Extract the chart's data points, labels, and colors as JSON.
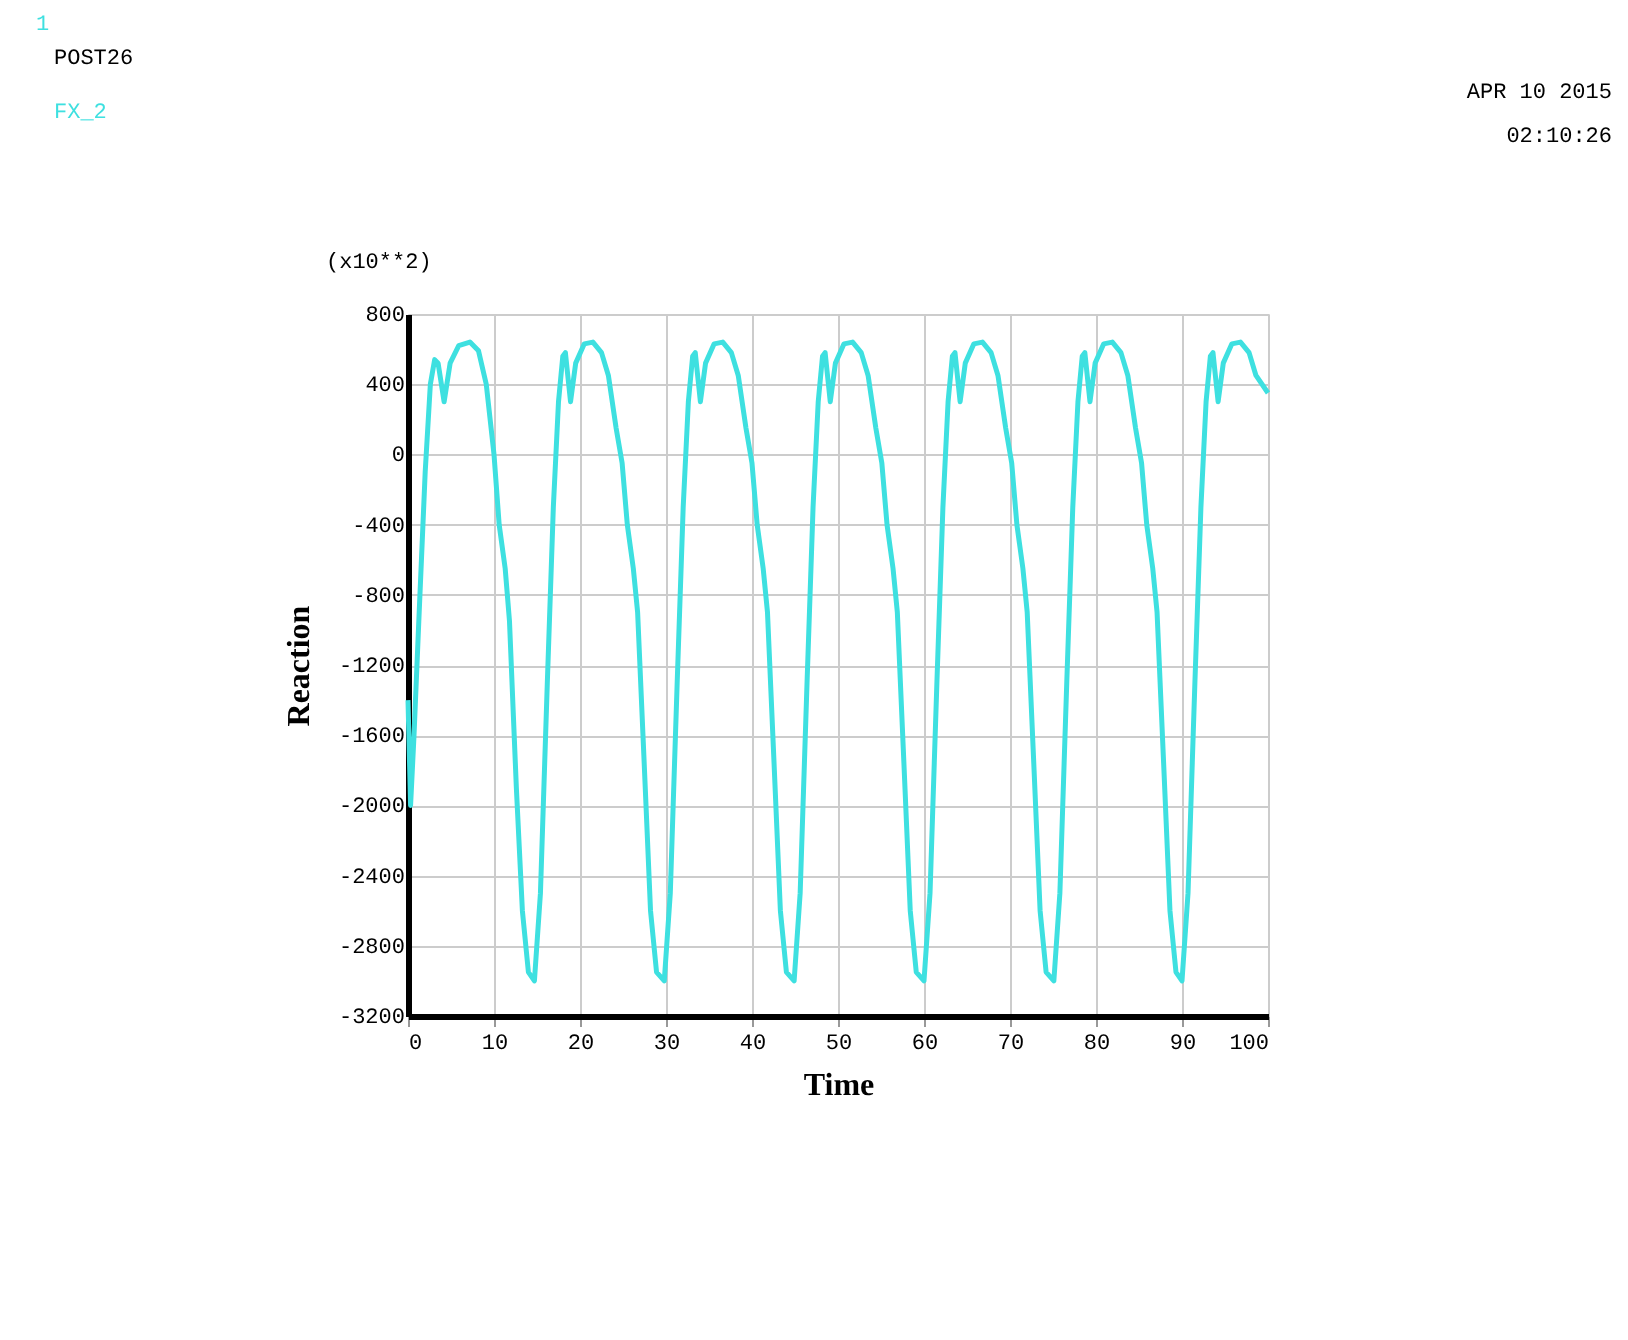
{
  "chart_data": {
    "type": "line",
    "xlabel": "Time",
    "ylabel": "Reaction",
    "annotations": [
      "1",
      "POST26",
      "APR 10 2015",
      "02:10:26",
      "(x10**2)"
    ],
    "xlim": [
      0,
      100
    ],
    "xticks": [
      0,
      10,
      20,
      30,
      40,
      50,
      60,
      70,
      80,
      90,
      100
    ],
    "ylim": [
      -3200,
      800
    ],
    "yticks": [
      -3200,
      -2800,
      -2400,
      -2000,
      -1600,
      -1200,
      -800,
      -400,
      0,
      400,
      800
    ],
    "grid": true,
    "legend": "top left",
    "marker": "none",
    "line_style": "solid",
    "series": [
      {
        "name": "FX_2",
        "color": "#3ee0e0",
        "x": [
          0,
          0.3,
          0.7,
          1.3,
          2,
          2.6,
          3.1,
          3.5,
          4.2,
          4.9,
          5.9,
          7.2,
          8.2,
          9.1,
          10.0,
          10.6,
          11.3,
          11.8,
          12.6,
          13.3,
          14.0,
          14.7,
          15.4,
          16.2,
          16.9,
          17.5,
          18.0,
          18.3,
          18.9,
          19.5,
          20.5,
          21.5,
          22.5,
          23.3,
          24.2,
          24.9,
          25.5,
          26.2,
          26.7,
          27.5,
          28.2,
          28.9,
          29.8,
          30.5,
          31.3,
          32.0,
          32.6,
          33.1,
          33.4,
          34.0,
          34.6,
          35.6,
          36.6,
          37.6,
          38.4,
          39.3,
          40.0,
          40.6,
          41.3,
          41.8,
          42.6,
          43.3,
          44.0,
          44.9,
          45.6,
          46.4,
          47.1,
          47.7,
          48.2,
          48.5,
          49.1,
          49.7,
          50.7,
          51.7,
          52.7,
          53.5,
          54.4,
          55.1,
          55.7,
          56.4,
          56.9,
          57.7,
          58.4,
          59.1,
          60,
          60.7,
          61.5,
          62.2,
          62.8,
          63.3,
          63.6,
          64.2,
          64.8,
          65.8,
          66.8,
          67.8,
          68.6,
          69.5,
          70.2,
          70.8,
          71.5,
          72.0,
          72.8,
          73.5,
          74.2,
          75.1,
          75.8,
          76.6,
          77.3,
          77.9,
          78.4,
          78.7,
          79.3,
          79.9,
          80.9,
          81.9,
          82.9,
          83.7,
          84.6,
          85.3,
          85.9,
          86.6,
          87.1,
          87.9,
          88.6,
          89.3,
          90,
          90.7,
          91.5,
          92.2,
          92.8,
          93.3,
          93.6,
          94.2,
          94.8,
          95.8,
          96.8,
          97.8,
          98.6,
          100
        ],
        "values": [
          -1400,
          -2000,
          -1600,
          -900,
          -100,
          400,
          540,
          520,
          300,
          520,
          620,
          640,
          590,
          400,
          0,
          -400,
          -650,
          -950,
          -1900,
          -2600,
          -2950,
          -3000,
          -2500,
          -1300,
          -300,
          300,
          560,
          580,
          300,
          520,
          630,
          640,
          580,
          450,
          150,
          -50,
          -400,
          -650,
          -900,
          -1800,
          -2600,
          -2950,
          -3000,
          -2500,
          -1300,
          -300,
          300,
          560,
          580,
          300,
          520,
          630,
          640,
          580,
          450,
          150,
          -50,
          -400,
          -650,
          -900,
          -1800,
          -2600,
          -2950,
          -3000,
          -2500,
          -1300,
          -300,
          300,
          560,
          580,
          300,
          520,
          630,
          640,
          580,
          450,
          150,
          -50,
          -400,
          -650,
          -900,
          -1800,
          -2600,
          -2950,
          -3000,
          -2500,
          -1300,
          -300,
          300,
          560,
          580,
          300,
          520,
          630,
          640,
          580,
          450,
          150,
          -50,
          -400,
          -650,
          -900,
          -1800,
          -2600,
          -2950,
          -3000,
          -2500,
          -1300,
          -300,
          300,
          560,
          580,
          300,
          520,
          630,
          640,
          580,
          450,
          150,
          -50,
          -400,
          -650,
          -900,
          -1800,
          -2600,
          -2950,
          -3000,
          -2500,
          -1300,
          -300,
          300,
          560,
          580,
          300,
          520,
          630,
          640,
          580,
          450,
          350
        ]
      }
    ]
  }
}
